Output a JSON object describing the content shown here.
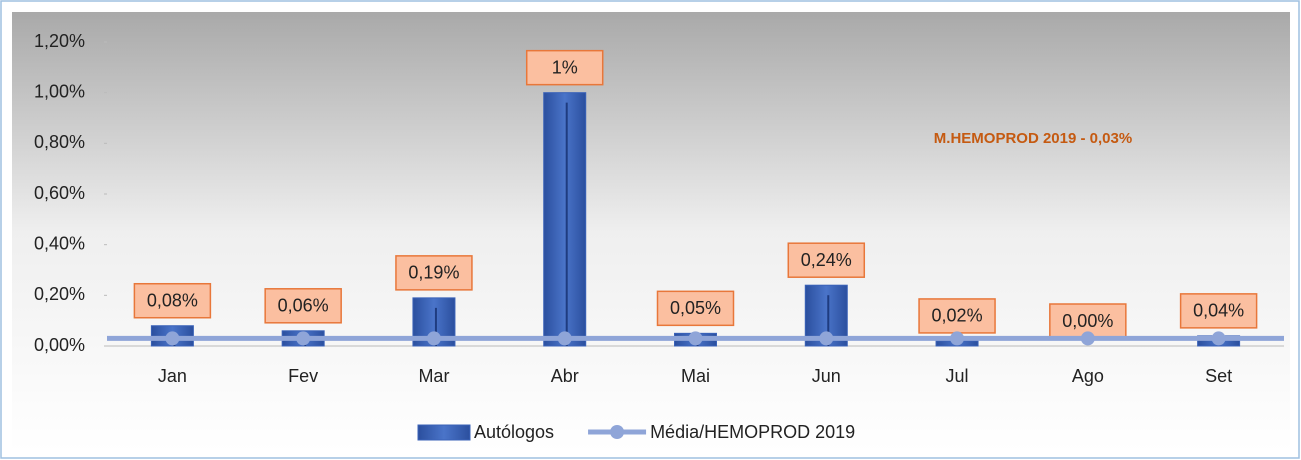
{
  "chart_data": {
    "type": "bar",
    "categories": [
      "Jan",
      "Fev",
      "Mar",
      "Abr",
      "Mai",
      "Jun",
      "Jul",
      "Ago",
      "Set"
    ],
    "series": [
      {
        "name": "Autólogos",
        "color": "#3a62b8",
        "type": "bar",
        "values": [
          0.08,
          0.06,
          0.19,
          1,
          0.05,
          0.24,
          0.02,
          0.0,
          0.04
        ],
        "value_labels": [
          "0,08%",
          "0,06%",
          "0,19%",
          "1%",
          "0,05%",
          "0,24%",
          "0,02%",
          "0,00%",
          "0,04%"
        ]
      },
      {
        "name": "Média/HEMOPROD 2019",
        "color": "#8fa5d8",
        "type": "line",
        "values": [
          0.03,
          0.03,
          0.03,
          0.03,
          0.03,
          0.03,
          0.03,
          0.03,
          0.03
        ]
      }
    ],
    "ylim": [
      0,
      1.2
    ],
    "yticks": [
      {
        "value": 0,
        "label": "0,00%"
      },
      {
        "value": 0.2,
        "label": "0,20%"
      },
      {
        "value": 0.4,
        "label": "0,40%"
      },
      {
        "value": 0.6,
        "label": "0,60%"
      },
      {
        "value": 0.8,
        "label": "0,80%"
      },
      {
        "value": 1.0,
        "label": "1,00%"
      },
      {
        "value": 1.2,
        "label": "1,20%"
      }
    ],
    "annotation": "M.HEMOPROD 2019 - 0,03%",
    "legend": "bottom"
  }
}
